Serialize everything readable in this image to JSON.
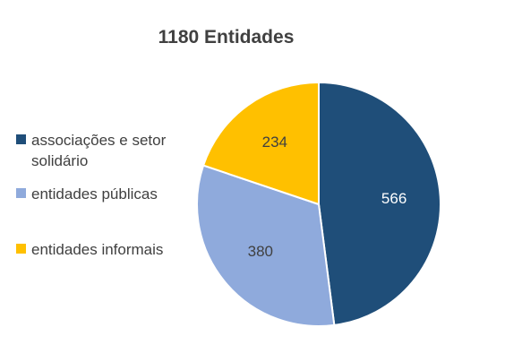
{
  "chart_data": {
    "type": "pie",
    "title": "1180 Entidades",
    "legend_position": "left",
    "slices": [
      {
        "label": "associações e setor solidário",
        "value": 566,
        "color": "#1f4e79",
        "label_color": "#ffffff"
      },
      {
        "label": "entidades públicas",
        "value": 380,
        "color": "#8faadc",
        "label_color": "#404040"
      },
      {
        "label": "entidades informais",
        "value": 234,
        "color": "#ffc000",
        "label_color": "#404040"
      }
    ]
  }
}
